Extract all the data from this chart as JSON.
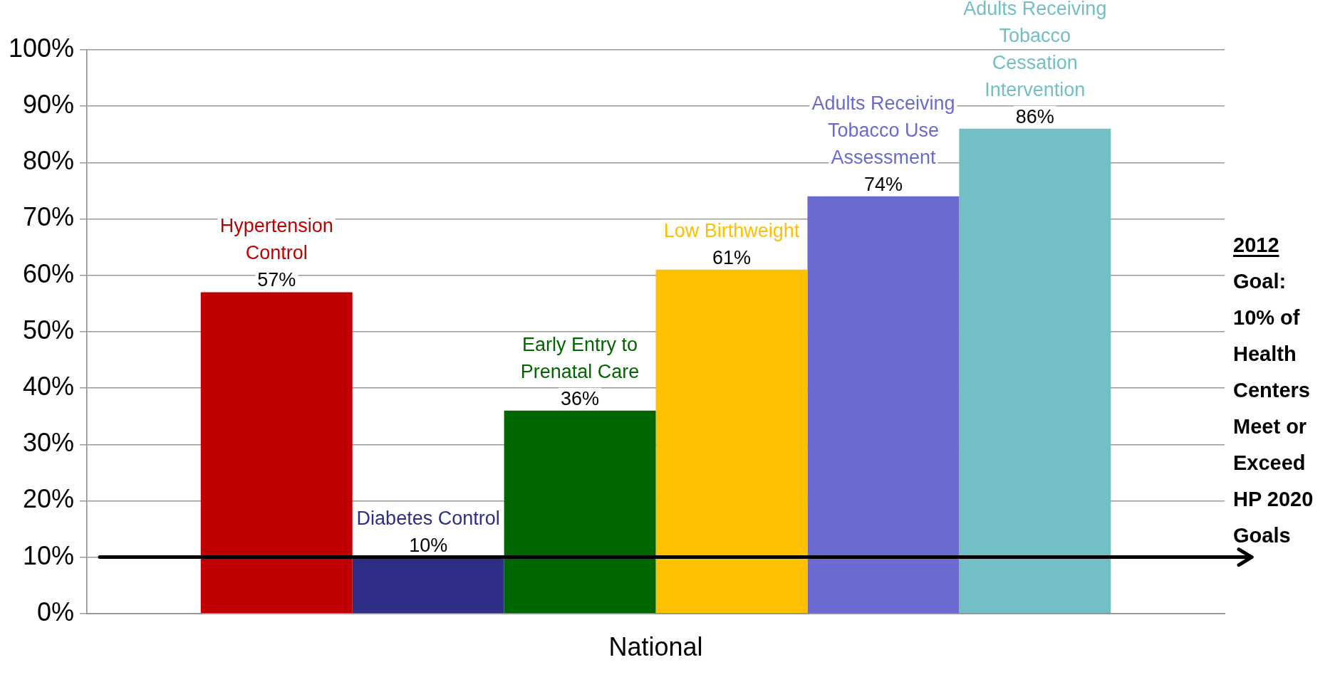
{
  "chart_data": {
    "type": "bar",
    "categories": [
      "National"
    ],
    "ylim": [
      0,
      100
    ],
    "yticks": [
      {
        "value": 0,
        "label": "0%"
      },
      {
        "value": 10,
        "label": "10%"
      },
      {
        "value": 20,
        "label": "20%"
      },
      {
        "value": 30,
        "label": "30%"
      },
      {
        "value": 40,
        "label": "40%"
      },
      {
        "value": 50,
        "label": "50%"
      },
      {
        "value": 60,
        "label": "60%"
      },
      {
        "value": 70,
        "label": "70%"
      },
      {
        "value": 80,
        "label": "80%"
      },
      {
        "value": 90,
        "label": "90%"
      },
      {
        "value": 100,
        "label": "100%"
      }
    ],
    "grid": "y",
    "legend": false,
    "series": [
      {
        "name": "Hypertension Control",
        "color": "#c00000",
        "values": [
          57
        ],
        "value_labels": [
          "57%"
        ]
      },
      {
        "name": "Diabetes Control",
        "color": "#2e2e87",
        "values": [
          10
        ],
        "value_labels": [
          "10%"
        ]
      },
      {
        "name": "Early Entry to Prenatal Care",
        "color": "#006600",
        "values": [
          36
        ],
        "value_labels": [
          "36%"
        ]
      },
      {
        "name": "Low Birthweight",
        "color": "#ffc000",
        "values": [
          61
        ],
        "value_labels": [
          "61%"
        ]
      },
      {
        "name": "Adults Receiving Tobacco Use Assessment",
        "color": "#6b6bcf",
        "values": [
          74
        ],
        "value_labels": [
          "74%"
        ]
      },
      {
        "name": "Adults Receiving Tobacco Cessation Intervention",
        "color": "#72bfc5",
        "values": [
          86
        ],
        "value_labels": [
          "86%"
        ]
      }
    ],
    "ref_lines": [
      {
        "axis": "y",
        "value": 10,
        "label": "2012 Goal: 10% of Health Centers Meet or Exceed HP 2020 Goals",
        "color": "#000000"
      }
    ]
  }
}
